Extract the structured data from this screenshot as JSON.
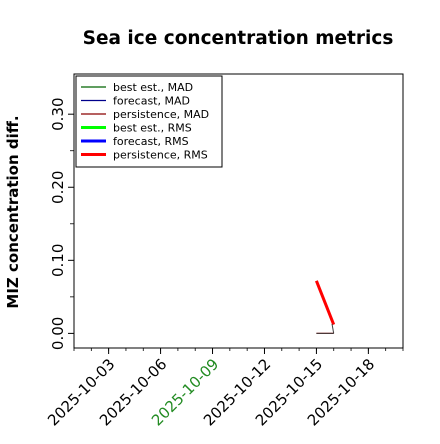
{
  "chart_data": {
    "type": "line",
    "title": "Sea ice concentration metrics",
    "xlabel": "",
    "ylabel": "MIZ concentration diff.",
    "x_type": "date",
    "xlim": [
      "2025-10-01",
      "2025-10-20"
    ],
    "ylim": [
      -0.02,
      0.355
    ],
    "xticks": [
      "2025-10-03",
      "2025-10-06",
      "2025-10-09",
      "2025-10-12",
      "2025-10-15",
      "2025-10-18"
    ],
    "xtick_highlight": "2025-10-09",
    "xtick_highlight_color": "#228b22",
    "yticks": [
      0.0,
      0.1,
      0.2,
      0.3
    ],
    "ytick_labels": [
      "0.00",
      "0.10",
      "0.20",
      "0.30"
    ],
    "ytick_minor": [
      0.05,
      0.15,
      0.25
    ],
    "grid": false,
    "legend_position": "top-left",
    "series": [
      {
        "name": "best est., MAD",
        "color": "#006400",
        "width": 1.2,
        "x": [],
        "y": []
      },
      {
        "name": "forecast,  MAD",
        "color": "#00008b",
        "width": 1.2,
        "x": [],
        "y": []
      },
      {
        "name": "persistence, MAD",
        "color": "#8b0000",
        "width": 1.2,
        "x": [
          "2025-10-15",
          "2025-10-16"
        ],
        "y": [
          0.0,
          0.0
        ]
      },
      {
        "name": "best est., RMS",
        "color": "#00ff00",
        "width": 3,
        "x": [],
        "y": []
      },
      {
        "name": "forecast,  RMS",
        "color": "#0000ff",
        "width": 3,
        "x": [],
        "y": []
      },
      {
        "name": "persistence, RMS",
        "color": "#ff0000",
        "width": 3,
        "x": [
          "2025-10-15",
          "2025-10-16"
        ],
        "y": [
          0.072,
          0.012
        ]
      }
    ],
    "extra_lines": [
      {
        "color": "#404040",
        "width": 1,
        "x": [
          "2025-10-15",
          "2025-10-16"
        ],
        "y": [
          0.0,
          0.0
        ]
      },
      {
        "color": "#404040",
        "width": 1,
        "x": [
          "2025-10-16",
          "2025-10-15.9"
        ],
        "y": [
          0.0,
          0.013
        ]
      }
    ]
  }
}
